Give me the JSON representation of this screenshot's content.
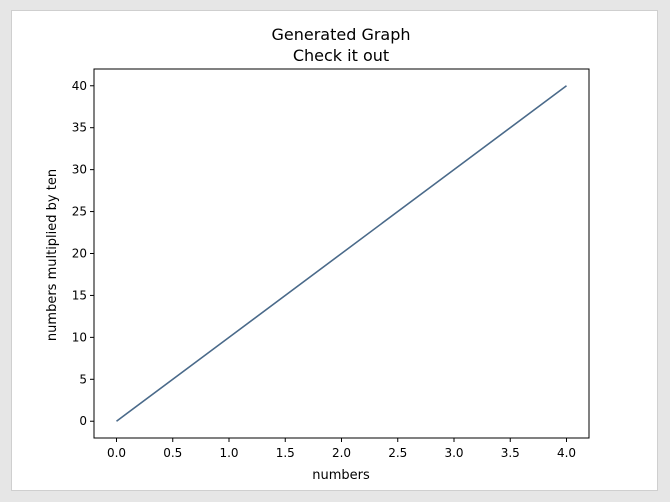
{
  "chart_data": {
    "type": "line",
    "title": "Generated Graph",
    "subtitle": "Check it out",
    "xlabel": "numbers",
    "ylabel": "numbers multiplied by ten",
    "xlim": [
      -0.2,
      4.2
    ],
    "ylim": [
      -2,
      42
    ],
    "xticks": [
      0.0,
      0.5,
      1.0,
      1.5,
      2.0,
      2.5,
      3.0,
      3.5,
      4.0
    ],
    "xtick_labels": [
      "0.0",
      "0.5",
      "1.0",
      "1.5",
      "2.0",
      "2.5",
      "3.0",
      "3.5",
      "4.0"
    ],
    "yticks": [
      0,
      5,
      10,
      15,
      20,
      25,
      30,
      35,
      40
    ],
    "ytick_labels": [
      "0",
      "5",
      "10",
      "15",
      "20",
      "25",
      "30",
      "35",
      "40"
    ],
    "grid": false,
    "series": [
      {
        "x": [
          0,
          1,
          2,
          3,
          4
        ],
        "values": [
          0,
          10,
          20,
          30,
          40
        ],
        "color": "#4a6a8a"
      }
    ]
  }
}
